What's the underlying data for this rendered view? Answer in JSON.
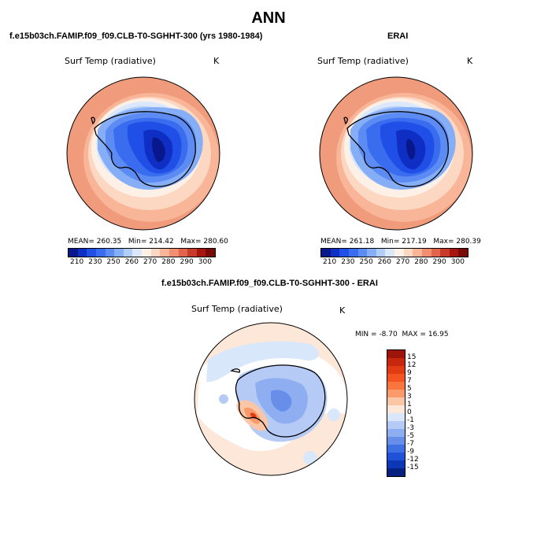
{
  "page": {
    "title": "ANN"
  },
  "left_panel": {
    "title": "f.e15b03ch.FAMIP.f09_f09.CLB-T0-SGHHT-300 (yrs 1980-1984)",
    "variable": "Surf Temp (radiative)",
    "units": "K",
    "mean_label": "MEAN=",
    "mean": "260.35",
    "min_label": "Min=",
    "min": "214.42",
    "max_label": "Max=",
    "max": "280.60"
  },
  "right_panel": {
    "title": "ERAI",
    "variable": "Surf Temp (radiative)",
    "units": "K",
    "mean_label": "MEAN=",
    "mean": "261.18",
    "min_label": "Min=",
    "min": "217.19",
    "max_label": "Max=",
    "max": "280.39"
  },
  "diff_panel": {
    "title": "f.e15b03ch.FAMIP.f09_f09.CLB-T0-SGHHT-300 - ERAI",
    "variable": "Surf Temp (radiative)",
    "units": "K",
    "min_label": "MIN =",
    "min": "-8.70",
    "max_label": "MAX =",
    "max": "16.95"
  },
  "abs_colorbar": {
    "ticks": [
      "210",
      "230",
      "250",
      "260",
      "270",
      "280",
      "290",
      "300"
    ],
    "colors": [
      "#08188c",
      "#0f2fc4",
      "#1f4fe6",
      "#3a6cf0",
      "#5c8cf3",
      "#86aef6",
      "#b3cdf9",
      "#dbe8fb",
      "#fdf1e7",
      "#fcd8c2",
      "#f9b598",
      "#f28f71",
      "#e3644d",
      "#c83a2c",
      "#a8150f",
      "#7a0a06"
    ]
  },
  "diff_colorbar": {
    "labels": [
      "15",
      "12",
      "9",
      "7",
      "5",
      "3",
      "1",
      "0",
      "-1",
      "-3",
      "-5",
      "-7",
      "-9",
      "-12",
      "-15"
    ],
    "colors": [
      "#a0150b",
      "#c7270f",
      "#e23a13",
      "#f45420",
      "#f9753d",
      "#fa9a6a",
      "#fbc6a5",
      "#fde7d8",
      "#d9e7fb",
      "#b5cbf6",
      "#8eaef1",
      "#678fea",
      "#3e6fe3",
      "#1f52d6",
      "#0d37b6",
      "#06217f"
    ]
  }
}
